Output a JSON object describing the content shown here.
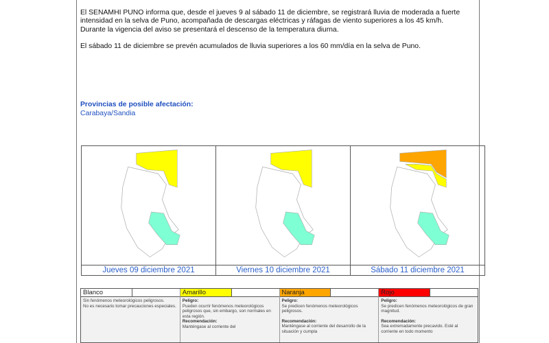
{
  "bulletin": {
    "paragraph1": "El SENAMHI PUNO informa que, desde el jueves 9 al sábado 11 de diciembre, se registrará lluvia de moderada a fuerte intensidad en la selva de Puno, acompañada de descargas eléctricas y ráfagas de viento superiores a los 45 km/h.",
    "paragraph2": "Durante la vigencia del aviso se presentará el descenso de la temperatura diurna.",
    "paragraph3": "El sábado 11 de diciembre se prevén acumulados de lluvia superiores a los 60 mm/día en la selva de Puno."
  },
  "provinces": {
    "title": "Provincias de posible afectación:",
    "list": "Carabaya/Sandia"
  },
  "maps": [
    {
      "caption": "Jueves 09 diciembre 2021",
      "north_level": "Amarillo"
    },
    {
      "caption": "Viernes 10 diciembre 2021",
      "north_level": "Amarillo"
    },
    {
      "caption": "Sábado 11 diciembre 2021",
      "north_level": "Naranja"
    }
  ],
  "colors": {
    "amarillo": "#ffff00",
    "naranja": "#ffa500",
    "rojo": "#ff0000",
    "lake": "#7fffd4"
  },
  "legend": [
    {
      "label": "Blanco",
      "color": "#ffffff",
      "text1": "Sin fenómenos meteorológicos peligrosos.",
      "text2": "No es necesario tomar precauciones especiales."
    },
    {
      "label": "Amarillo",
      "color": "#ffff00",
      "peligro": "Peligro:",
      "text1": "Pueden ocurrir fenómenos meteorológicos peligrosos que, sin embargo, son normales en esta región.",
      "rec": "Recomendación:",
      "text2": "Manténgase al corriente del"
    },
    {
      "label": "Naranja",
      "color": "#ffa500",
      "peligro": "Peligro:",
      "text1": "Se predicen fenómenos meteorológicos peligrosos.",
      "rec": "Recomendación:",
      "text2": "Manténgase al corriente del desarrollo de la situación y cumpla"
    },
    {
      "label": "Rojo",
      "color": "#ff0000",
      "peligro": "Peligro:",
      "text1": "Se predicen fenómenos meteorológicos de gran magnitud.",
      "rec": "Recomendación:",
      "text2": "Sea extremadamente precavido. Esté al corriente en todo momento"
    }
  ]
}
